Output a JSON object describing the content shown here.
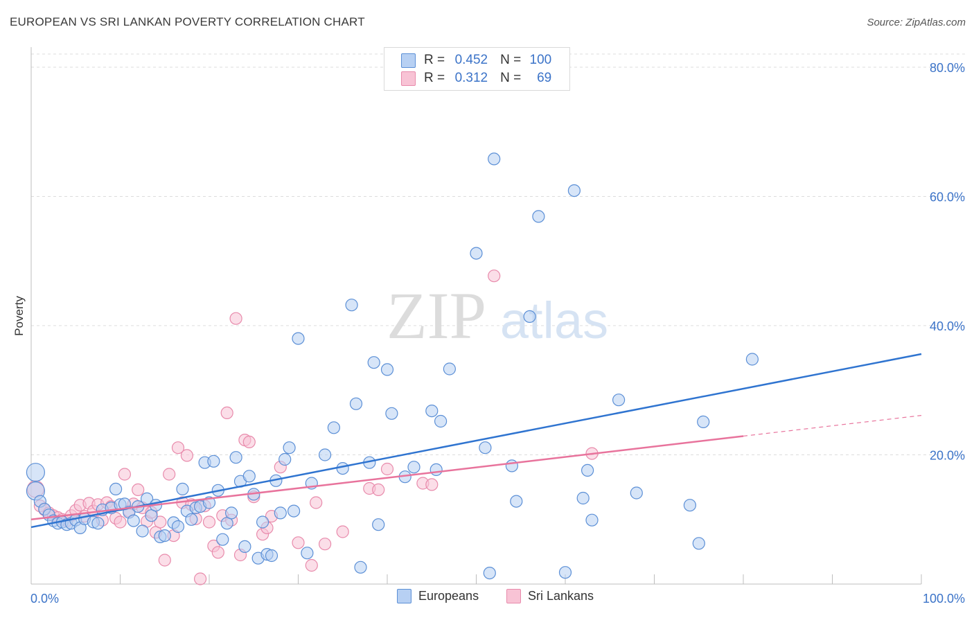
{
  "title": "EUROPEAN VS SRI LANKAN POVERTY CORRELATION CHART",
  "source": "Source: ZipAtlas.com",
  "watermark": {
    "zip": "ZIP",
    "atlas": "atlas"
  },
  "legend": {
    "rows": [
      {
        "r_label": "R =",
        "r_value": "0.452",
        "n_label": "N =",
        "n_value": "100"
      },
      {
        "r_label": "R =",
        "r_value": "0.312",
        "n_label": "N =",
        "n_value": "69"
      }
    ]
  },
  "bottom_legend": [
    "Europeans",
    "Sri Lankans"
  ],
  "colors": {
    "europeans_fill": "#b7d0f3",
    "europeans_stroke": "#5b8fd6",
    "europeans_line": "#2f74d0",
    "srilankans_fill": "#f8c3d5",
    "srilankans_stroke": "#e88aab",
    "srilankans_line": "#e8739c",
    "axis_text": "#3b73c8",
    "grid": "#dcdcdc"
  },
  "chart_data": {
    "type": "scatter",
    "title": "EUROPEAN VS SRI LANKAN POVERTY CORRELATION CHART",
    "xlabel": "",
    "ylabel": "Poverty",
    "xlim": [
      0,
      100
    ],
    "ylim": [
      0,
      80
    ],
    "x_tick_labels": [
      "0.0%",
      "100.0%"
    ],
    "y_ticks": [
      20,
      40,
      60,
      80
    ],
    "y_tick_labels": [
      "20.0%",
      "40.0%",
      "60.0%",
      "80.0%"
    ],
    "grid": true,
    "legend_position": "bottom-center",
    "series": [
      {
        "name": "Europeans",
        "r": 0.452,
        "n": 100,
        "trend": {
          "x": [
            0,
            100
          ],
          "y": [
            8.8,
            35.6
          ]
        },
        "points": [
          [
            0.5,
            17.3
          ],
          [
            0.5,
            14.4
          ],
          [
            1,
            12.8
          ],
          [
            1.5,
            11.6
          ],
          [
            2,
            10.7
          ],
          [
            2.5,
            9.8
          ],
          [
            3,
            9.4
          ],
          [
            3.5,
            9.6
          ],
          [
            4,
            9.2
          ],
          [
            4.5,
            9.4
          ],
          [
            5,
            9.9
          ],
          [
            5.5,
            8.7
          ],
          [
            6,
            10.1
          ],
          [
            7,
            9.6
          ],
          [
            7.5,
            9.4
          ],
          [
            8,
            11.5
          ],
          [
            9,
            11.8
          ],
          [
            9.5,
            14.7
          ],
          [
            10,
            12.3
          ],
          [
            10.5,
            12.4
          ],
          [
            11,
            11.1
          ],
          [
            11.5,
            9.8
          ],
          [
            12,
            12.0
          ],
          [
            12.5,
            8.2
          ],
          [
            13,
            13.2
          ],
          [
            13.5,
            10.6
          ],
          [
            14,
            12.2
          ],
          [
            14.5,
            7.3
          ],
          [
            15,
            7.5
          ],
          [
            16,
            9.5
          ],
          [
            16.5,
            8.9
          ],
          [
            17,
            14.7
          ],
          [
            17.5,
            11.3
          ],
          [
            18,
            10.0
          ],
          [
            18.5,
            11.8
          ],
          [
            19,
            12.0
          ],
          [
            19.5,
            18.8
          ],
          [
            20,
            12.6
          ],
          [
            20.5,
            19.0
          ],
          [
            21,
            14.5
          ],
          [
            21.5,
            6.9
          ],
          [
            22,
            9.4
          ],
          [
            22.5,
            11.0
          ],
          [
            23,
            19.6
          ],
          [
            23.5,
            15.9
          ],
          [
            24,
            5.8
          ],
          [
            24.5,
            16.7
          ],
          [
            25,
            13.9
          ],
          [
            25.5,
            4.0
          ],
          [
            26,
            9.6
          ],
          [
            26.5,
            4.6
          ],
          [
            27,
            4.4
          ],
          [
            27.5,
            16.0
          ],
          [
            28,
            11.0
          ],
          [
            28.5,
            19.3
          ],
          [
            29,
            21.1
          ],
          [
            29.5,
            11.3
          ],
          [
            30,
            38.0
          ],
          [
            31,
            4.8
          ],
          [
            31.5,
            15.6
          ],
          [
            33,
            20.0
          ],
          [
            34,
            24.2
          ],
          [
            35,
            17.9
          ],
          [
            36,
            43.2
          ],
          [
            36.5,
            27.9
          ],
          [
            37,
            2.6
          ],
          [
            38,
            18.8
          ],
          [
            38.5,
            34.3
          ],
          [
            39,
            9.2
          ],
          [
            40,
            33.2
          ],
          [
            40.5,
            26.4
          ],
          [
            42,
            16.6
          ],
          [
            43,
            18.1
          ],
          [
            45,
            26.8
          ],
          [
            45.5,
            17.7
          ],
          [
            46,
            25.2
          ],
          [
            47,
            33.3
          ],
          [
            50,
            51.2
          ],
          [
            51,
            21.1
          ],
          [
            51.5,
            1.7
          ],
          [
            52,
            65.8
          ],
          [
            54,
            18.3
          ],
          [
            54.5,
            12.8
          ],
          [
            56,
            41.4
          ],
          [
            57,
            56.9
          ],
          [
            60,
            1.8
          ],
          [
            61,
            60.9
          ],
          [
            62,
            13.3
          ],
          [
            62.5,
            17.6
          ],
          [
            63,
            9.9
          ],
          [
            66,
            28.5
          ],
          [
            68,
            14.1
          ],
          [
            74,
            12.2
          ],
          [
            75,
            6.3
          ],
          [
            75.5,
            25.1
          ],
          [
            81,
            34.8
          ]
        ]
      },
      {
        "name": "Sri Lankans",
        "r": 0.312,
        "n": 69,
        "trend": {
          "x": [
            0,
            80
          ],
          "y": [
            10.0,
            22.9
          ]
        },
        "trend_dashed": {
          "x": [
            80,
            100
          ],
          "y": [
            22.9,
            26.1
          ]
        },
        "points": [
          [
            0.5,
            14.7
          ],
          [
            1,
            12.1
          ],
          [
            1.5,
            11.5
          ],
          [
            2,
            11.0
          ],
          [
            2.5,
            10.6
          ],
          [
            3,
            10.3
          ],
          [
            3.5,
            10.0
          ],
          [
            4,
            9.8
          ],
          [
            4.5,
            10.6
          ],
          [
            5,
            11.4
          ],
          [
            5.5,
            12.2
          ],
          [
            6,
            10.5
          ],
          [
            6.5,
            12.5
          ],
          [
            7,
            11.3
          ],
          [
            7.5,
            12.3
          ],
          [
            8,
            9.9
          ],
          [
            8.5,
            12.6
          ],
          [
            9,
            12.0
          ],
          [
            9.5,
            10.2
          ],
          [
            10,
            9.6
          ],
          [
            10.5,
            17.0
          ],
          [
            11,
            11.3
          ],
          [
            11.5,
            12.4
          ],
          [
            12,
            14.6
          ],
          [
            12.5,
            11.8
          ],
          [
            13,
            9.7
          ],
          [
            13.5,
            11.1
          ],
          [
            14,
            8.0
          ],
          [
            14.5,
            9.6
          ],
          [
            15,
            3.7
          ],
          [
            15.5,
            17.0
          ],
          [
            16,
            7.5
          ],
          [
            16.5,
            21.1
          ],
          [
            17,
            12.6
          ],
          [
            17.5,
            19.9
          ],
          [
            18,
            12.3
          ],
          [
            18.5,
            10.1
          ],
          [
            19,
            0.8
          ],
          [
            19.5,
            12.1
          ],
          [
            20,
            9.6
          ],
          [
            20.5,
            5.9
          ],
          [
            21,
            4.9
          ],
          [
            21.5,
            10.6
          ],
          [
            22,
            26.5
          ],
          [
            22.5,
            9.9
          ],
          [
            23,
            41.1
          ],
          [
            23.5,
            4.5
          ],
          [
            24,
            22.3
          ],
          [
            24.5,
            22.0
          ],
          [
            25,
            13.5
          ],
          [
            26,
            7.7
          ],
          [
            26.5,
            8.7
          ],
          [
            27,
            10.5
          ],
          [
            28,
            18.1
          ],
          [
            30,
            6.4
          ],
          [
            31.5,
            2.9
          ],
          [
            32,
            12.6
          ],
          [
            33,
            6.2
          ],
          [
            35,
            8.1
          ],
          [
            38,
            14.8
          ],
          [
            39,
            14.6
          ],
          [
            40,
            17.8
          ],
          [
            44,
            15.6
          ],
          [
            45,
            15.4
          ],
          [
            52,
            47.7
          ],
          [
            63,
            20.2
          ]
        ]
      }
    ]
  }
}
